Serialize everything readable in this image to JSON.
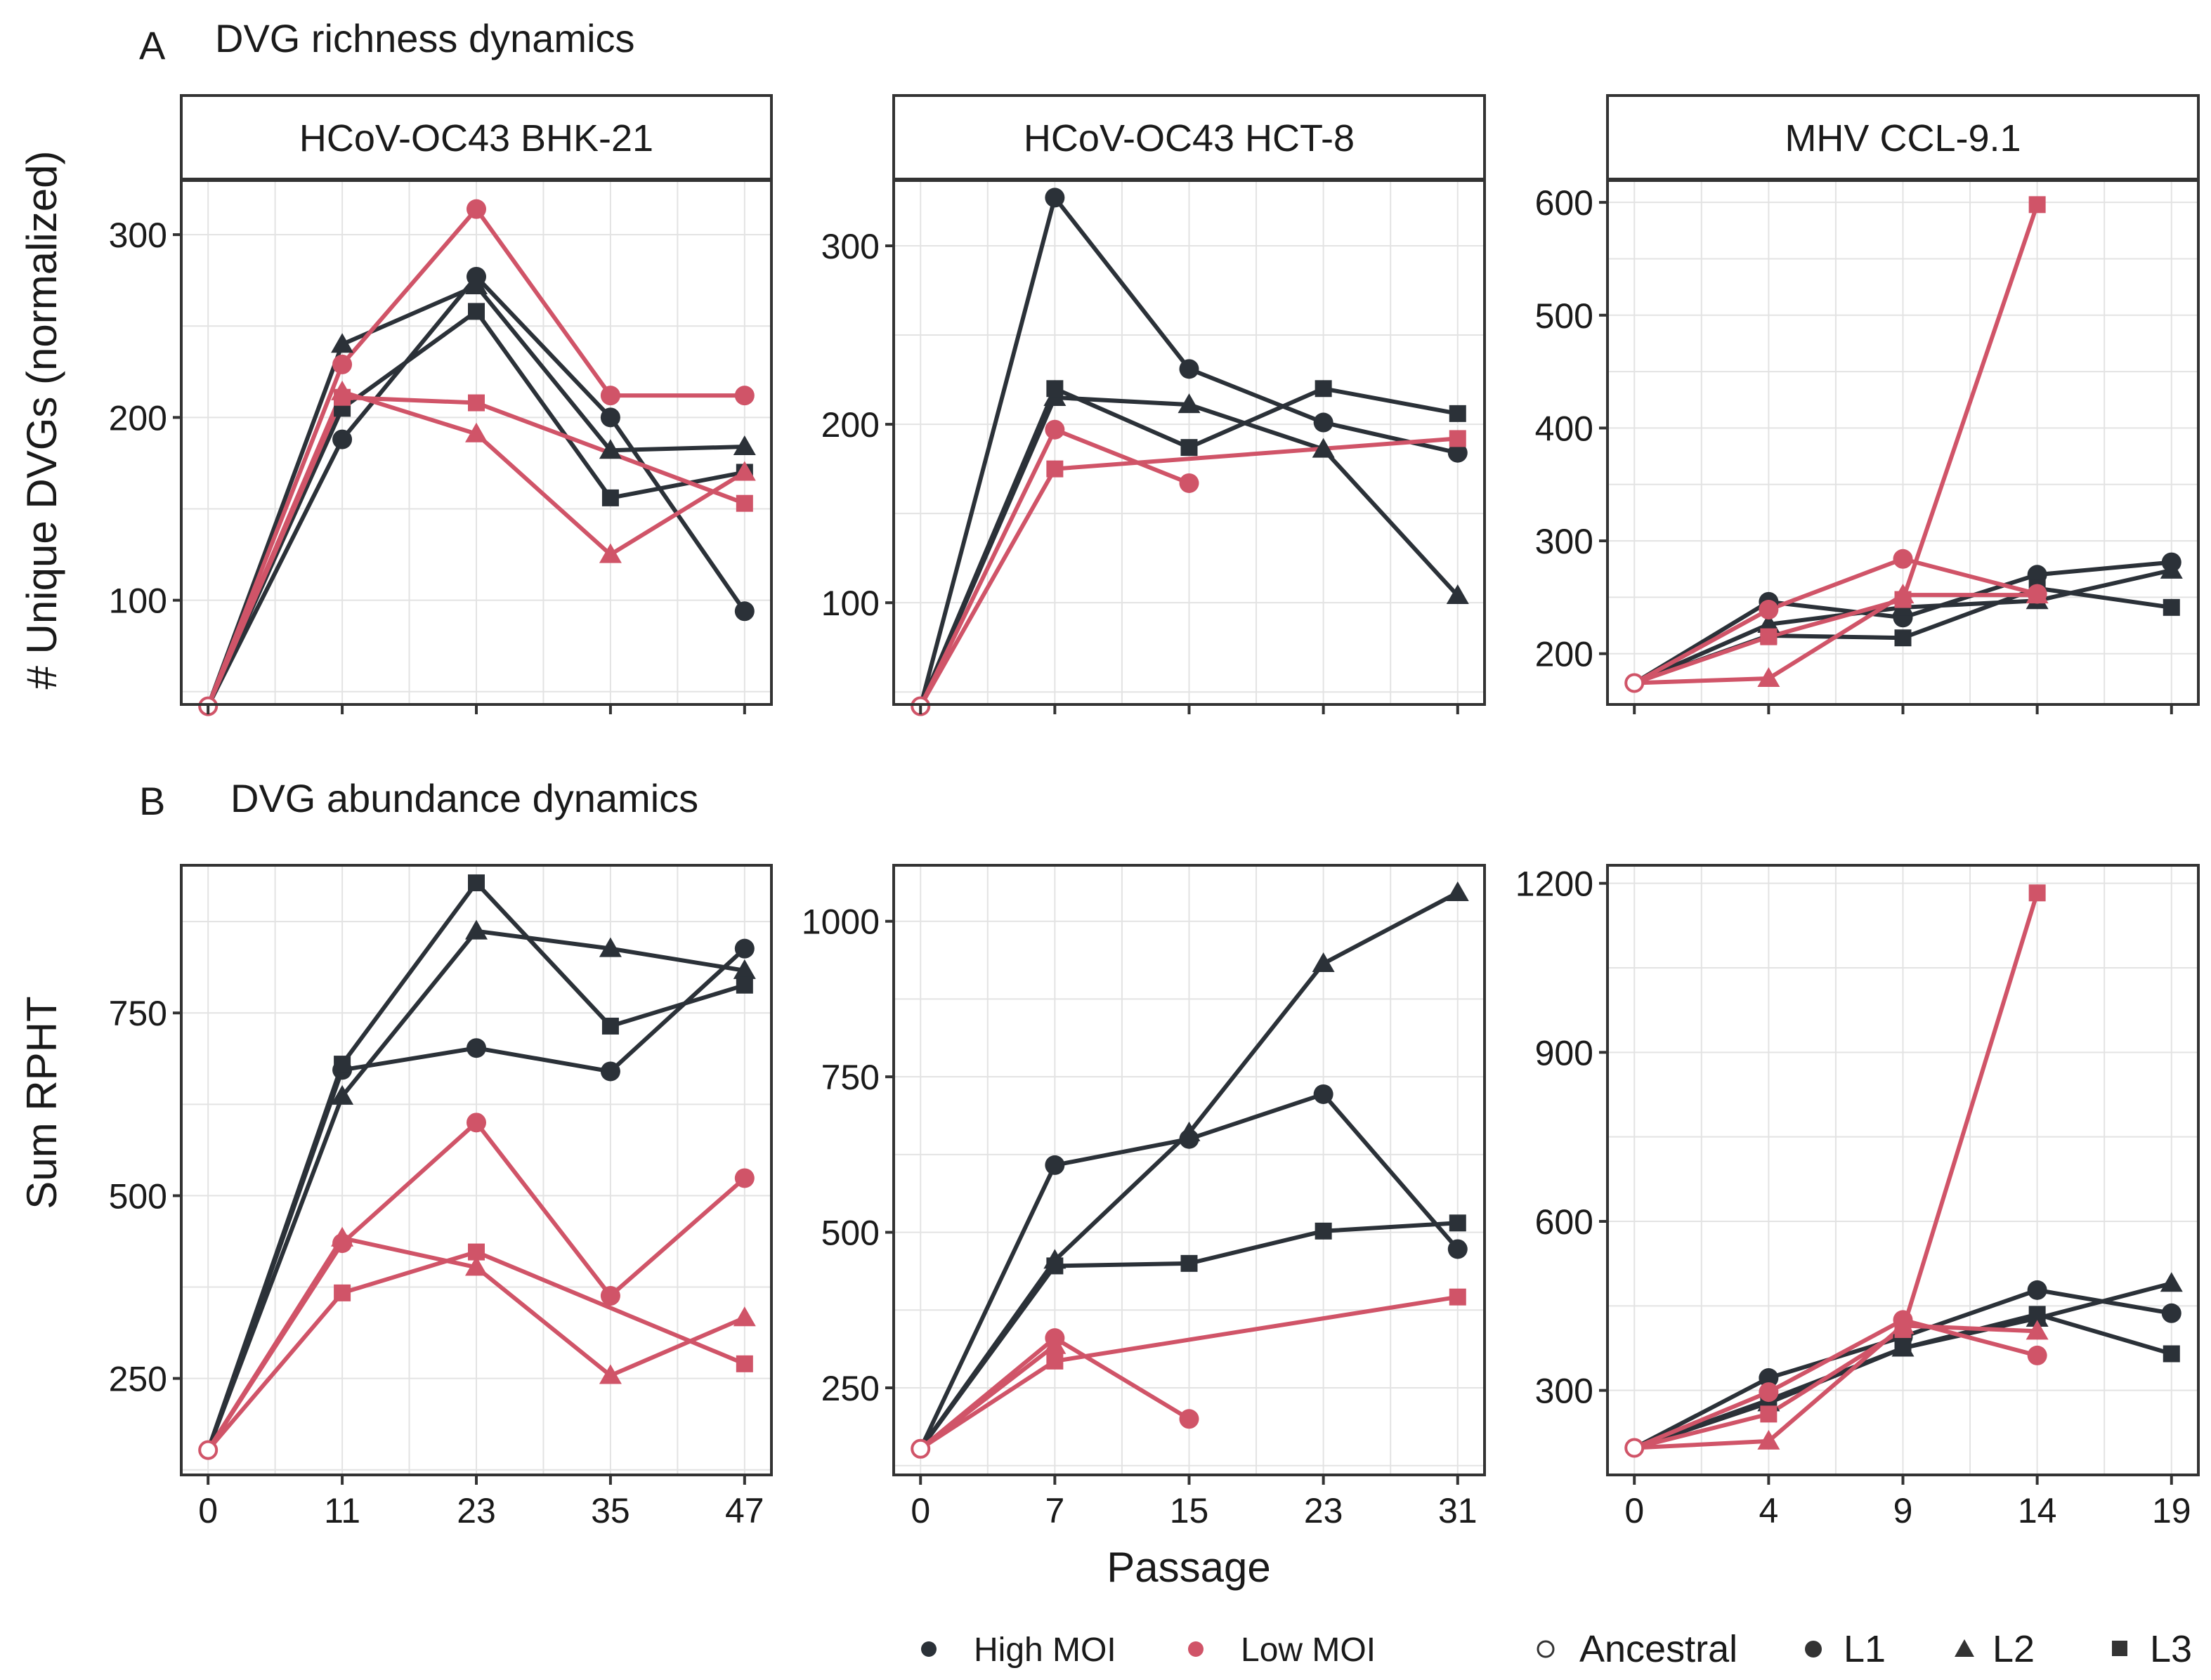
{
  "colors": {
    "high": "#2b3138",
    "low": "#d05468"
  },
  "labels": {
    "tag_a": "A",
    "title_a": "DVG richness dynamics",
    "tag_b": "B",
    "title_b": "DVG abundance dynamics",
    "ylabel_a": "# Unique DVGs (normalized)",
    "ylabel_b": "Sum RPHT",
    "xlabel": "Passage"
  },
  "legend": {
    "moi": [
      {
        "label": "High MOI",
        "color": "#2b3138"
      },
      {
        "label": "Low MOI",
        "color": "#d05468"
      }
    ],
    "lineage": [
      {
        "label": "Ancestral",
        "shape": "open-circle"
      },
      {
        "label": "L1",
        "shape": "circle"
      },
      {
        "label": "L2",
        "shape": "triangle"
      },
      {
        "label": "L3",
        "shape": "square"
      }
    ]
  },
  "chart_data": [
    {
      "type": "line",
      "row": "A",
      "strip": "HCoV-OC43 BHK-21",
      "ylabel": "# Unique DVGs (normalized)",
      "x": [
        0,
        11,
        23,
        35,
        47
      ],
      "ylim": [
        43,
        330
      ],
      "yticks": [
        100,
        200,
        300
      ],
      "ancestral": 42,
      "series": [
        {
          "name": "High MOI L1",
          "moi": "high",
          "lineage": "L1",
          "x": [
            11,
            23,
            35,
            47
          ],
          "values": [
            188,
            277,
            200,
            94
          ]
        },
        {
          "name": "High MOI L2",
          "moi": "high",
          "lineage": "L2",
          "x": [
            11,
            23,
            35,
            47
          ],
          "values": [
            240,
            272,
            182,
            184
          ]
        },
        {
          "name": "High MOI L3",
          "moi": "high",
          "lineage": "L3",
          "x": [
            11,
            23,
            35,
            47
          ],
          "values": [
            205,
            258,
            156,
            170
          ]
        },
        {
          "name": "Low MOI L1",
          "moi": "low",
          "lineage": "L1",
          "x": [
            11,
            23,
            35,
            47
          ],
          "values": [
            229,
            314,
            212,
            212
          ]
        },
        {
          "name": "Low MOI L2",
          "moi": "low",
          "lineage": "L2",
          "x": [
            11,
            23,
            35,
            47
          ],
          "values": [
            214,
            191,
            125,
            170
          ]
        },
        {
          "name": "Low MOI L3",
          "moi": "low",
          "lineage": "L3",
          "x": [
            11,
            23,
            47
          ],
          "values": [
            211,
            208,
            153
          ]
        }
      ]
    },
    {
      "type": "line",
      "row": "A",
      "strip": "HCoV-OC43 HCT-8",
      "x": [
        0,
        7,
        15,
        23,
        31
      ],
      "ylim": [
        43,
        337
      ],
      "yticks": [
        100,
        200,
        300
      ],
      "ancestral": 42,
      "series": [
        {
          "name": "High MOI L1",
          "moi": "high",
          "lineage": "L1",
          "x": [
            7,
            15,
            23,
            31
          ],
          "values": [
            327,
            231,
            201,
            184
          ]
        },
        {
          "name": "High MOI L2",
          "moi": "high",
          "lineage": "L2",
          "x": [
            7,
            15,
            23,
            31
          ],
          "values": [
            215,
            211,
            186,
            104
          ]
        },
        {
          "name": "High MOI L3",
          "moi": "high",
          "lineage": "L3",
          "x": [
            7,
            15,
            23,
            31
          ],
          "values": [
            220,
            187,
            220,
            206
          ]
        },
        {
          "name": "Low MOI L1",
          "moi": "low",
          "lineage": "L1",
          "x": [
            7,
            15
          ],
          "values": [
            197,
            167
          ]
        },
        {
          "name": "Low MOI L3",
          "moi": "low",
          "lineage": "L3",
          "x": [
            7,
            31
          ],
          "values": [
            175,
            192
          ]
        }
      ]
    },
    {
      "type": "line",
      "row": "A",
      "strip": "MHV CCL-9.1",
      "x": [
        0,
        4,
        9,
        14,
        19
      ],
      "ylim": [
        155,
        620
      ],
      "yticks": [
        200,
        300,
        400,
        500,
        600
      ],
      "ancestral": 174,
      "series": [
        {
          "name": "High MOI L1",
          "moi": "high",
          "lineage": "L1",
          "x": [
            4,
            9,
            14,
            19
          ],
          "values": [
            246,
            232,
            270,
            281
          ]
        },
        {
          "name": "High MOI L2",
          "moi": "high",
          "lineage": "L2",
          "x": [
            4,
            9,
            14,
            19
          ],
          "values": [
            226,
            241,
            247,
            274
          ]
        },
        {
          "name": "High MOI L3",
          "moi": "high",
          "lineage": "L3",
          "x": [
            4,
            9,
            14,
            19
          ],
          "values": [
            216,
            214,
            258,
            241
          ]
        },
        {
          "name": "Low MOI L1",
          "moi": "low",
          "lineage": "L1",
          "x": [
            4,
            9,
            14
          ],
          "values": [
            239,
            284,
            253
          ]
        },
        {
          "name": "Low MOI L2",
          "moi": "low",
          "lineage": "L2",
          "x": [
            4,
            9,
            14
          ],
          "values": [
            178,
            252,
            252
          ]
        },
        {
          "name": "Low MOI L3",
          "moi": "low",
          "lineage": "L3",
          "x": [
            4,
            9,
            14
          ],
          "values": [
            215,
            248,
            598
          ]
        }
      ]
    },
    {
      "type": "line",
      "row": "B",
      "strip": "",
      "ylabel": "Sum RPHT",
      "xlabel": "",
      "x": [
        0,
        11,
        23,
        35,
        47
      ],
      "ylim": [
        118,
        952
      ],
      "yticks": [
        250,
        500,
        750
      ],
      "ancestral": 152,
      "series": [
        {
          "name": "High MOI L1",
          "moi": "high",
          "lineage": "L1",
          "x": [
            11,
            23,
            35,
            47
          ],
          "values": [
            672,
            702,
            670,
            838
          ]
        },
        {
          "name": "High MOI L2",
          "moi": "high",
          "lineage": "L2",
          "x": [
            11,
            23,
            35,
            47
          ],
          "values": [
            636,
            862,
            838,
            808
          ]
        },
        {
          "name": "High MOI L3",
          "moi": "high",
          "lineage": "L3",
          "x": [
            11,
            23,
            35,
            47
          ],
          "values": [
            680,
            928,
            732,
            788
          ]
        },
        {
          "name": "Low MOI L1",
          "moi": "low",
          "lineage": "L1",
          "x": [
            11,
            23,
            35,
            47
          ],
          "values": [
            435,
            600,
            363,
            524
          ]
        },
        {
          "name": "Low MOI L2",
          "moi": "low",
          "lineage": "L2",
          "x": [
            11,
            23,
            35,
            47
          ],
          "values": [
            442,
            402,
            254,
            333
          ]
        },
        {
          "name": "Low MOI L3",
          "moi": "low",
          "lineage": "L3",
          "x": [
            11,
            23,
            47
          ],
          "values": [
            367,
            423,
            270
          ]
        }
      ]
    },
    {
      "type": "line",
      "row": "B",
      "strip": "",
      "xlabel": "Passage",
      "x": [
        0,
        7,
        15,
        23,
        31
      ],
      "ylim": [
        110,
        1090
      ],
      "yticks": [
        250,
        500,
        750,
        1000
      ],
      "ancestral": 152,
      "series": [
        {
          "name": "High MOI L1",
          "moi": "high",
          "lineage": "L1",
          "x": [
            7,
            15,
            23,
            31
          ],
          "values": [
            608,
            650,
            722,
            473
          ]
        },
        {
          "name": "High MOI L2",
          "moi": "high",
          "lineage": "L2",
          "x": [
            7,
            15,
            23,
            31
          ],
          "values": [
            455,
            660,
            932,
            1046
          ]
        },
        {
          "name": "High MOI L3",
          "moi": "high",
          "lineage": "L3",
          "x": [
            7,
            15,
            23,
            31
          ],
          "values": [
            446,
            450,
            502,
            515
          ]
        },
        {
          "name": "Low MOI L1",
          "moi": "low",
          "lineage": "L1",
          "x": [
            7,
            15
          ],
          "values": [
            330,
            200
          ]
        },
        {
          "name": "Low MOI L2",
          "moi": "low",
          "lineage": "L2",
          "x": [
            7
          ],
          "values": [
            318
          ]
        },
        {
          "name": "Low MOI L3",
          "moi": "low",
          "lineage": "L3",
          "x": [
            7,
            31
          ],
          "values": [
            293,
            396
          ]
        }
      ]
    },
    {
      "type": "line",
      "row": "B",
      "strip": "",
      "x": [
        0,
        4,
        9,
        14,
        19
      ],
      "ylim": [
        150,
        1232
      ],
      "yticks": [
        300,
        600,
        900,
        1200
      ],
      "ancestral": 198,
      "series": [
        {
          "name": "High MOI L1",
          "moi": "high",
          "lineage": "L1",
          "x": [
            4,
            9,
            14,
            19
          ],
          "values": [
            322,
            395,
            478,
            437
          ]
        },
        {
          "name": "High MOI L2",
          "moi": "high",
          "lineage": "L2",
          "x": [
            4,
            9,
            14,
            19
          ],
          "values": [
            278,
            375,
            428,
            490
          ]
        },
        {
          "name": "High MOI L3",
          "moi": "high",
          "lineage": "L3",
          "x": [
            4,
            9,
            14,
            19
          ],
          "values": [
            283,
            375,
            435,
            365
          ]
        },
        {
          "name": "Low MOI L1",
          "moi": "low",
          "lineage": "L1",
          "x": [
            4,
            9,
            14
          ],
          "values": [
            297,
            425,
            362
          ]
        },
        {
          "name": "Low MOI L2",
          "moi": "low",
          "lineage": "L2",
          "x": [
            4,
            9,
            14
          ],
          "values": [
            210,
            415,
            405
          ]
        },
        {
          "name": "Low MOI L3",
          "moi": "low",
          "lineage": "L3",
          "x": [
            4,
            9,
            14
          ],
          "values": [
            258,
            408,
            1183
          ]
        }
      ]
    }
  ]
}
